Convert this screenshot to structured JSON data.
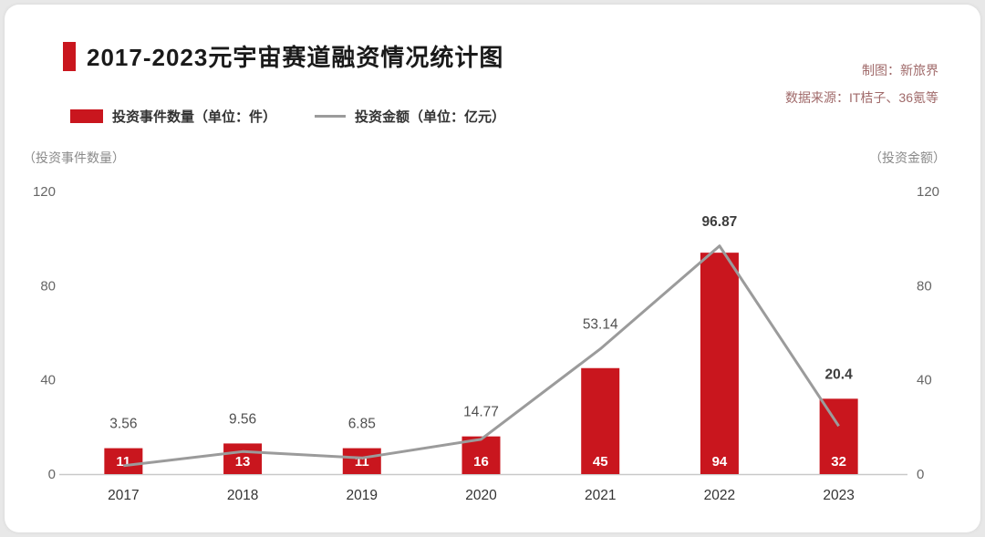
{
  "page": {
    "background": "#e8e8e8",
    "card_background": "#ffffff"
  },
  "header": {
    "title": "2017-2023元宇宙赛道融资情况统计图",
    "credit": "制图：新旅界",
    "source": "数据来源：IT桔子、36氪等",
    "accent_color": "#c9161e",
    "meta_color": "#a06a6a"
  },
  "legend": [
    {
      "type": "bar",
      "label": "投资事件数量（单位：件）",
      "color": "#c9161e"
    },
    {
      "type": "line",
      "label": "投资金额（单位：亿元）",
      "color": "#9b9b9b"
    }
  ],
  "axes": {
    "left_caption": "（投资事件数量）",
    "right_caption": "（投资金额）",
    "ticks": [
      0,
      40,
      80,
      120
    ],
    "max": 120
  },
  "chart_data": {
    "type": "bar",
    "title": "2017-2023元宇宙赛道融资情况统计图",
    "categories": [
      "2017",
      "2018",
      "2019",
      "2020",
      "2021",
      "2022",
      "2023"
    ],
    "series": [
      {
        "name": "投资事件数量（单位：件）",
        "type": "bar",
        "color": "#c9161e",
        "values": [
          11,
          13,
          11,
          16,
          45,
          94,
          32
        ],
        "label_color": "#ffffff"
      },
      {
        "name": "投资金额（单位：亿元）",
        "type": "line",
        "color": "#9b9b9b",
        "values": [
          3.56,
          9.56,
          6.85,
          14.77,
          53.14,
          96.87,
          20.4
        ],
        "bold_labels": [
          false,
          false,
          false,
          false,
          false,
          true,
          true
        ]
      }
    ],
    "ylim": [
      0,
      120
    ],
    "grid": false,
    "legend_position": "top-left"
  }
}
